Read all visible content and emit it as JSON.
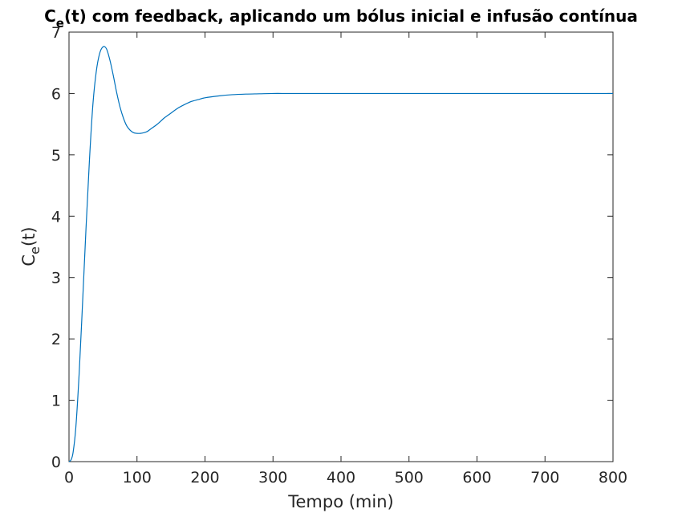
{
  "chart_data": {
    "type": "line",
    "title": {
      "main": "C",
      "sub": "e",
      "rest": "(t) com feedback, aplicando um bólus inicial e infusão contínua"
    },
    "xlabel": "Tempo (min)",
    "ylabel": {
      "main": "C",
      "sub": "e",
      "rest": "(t)"
    },
    "xlim": [
      0,
      800
    ],
    "ylim": [
      0,
      7
    ],
    "xticks": [
      "0",
      "100",
      "200",
      "300",
      "400",
      "500",
      "600",
      "700",
      "800"
    ],
    "yticks": [
      "0",
      "1",
      "2",
      "3",
      "4",
      "5",
      "6",
      "7"
    ],
    "grid": false,
    "series": [
      {
        "color": "#0072bd",
        "x": [
          0,
          3,
          6,
          10,
          15,
          20,
          25,
          30,
          35,
          40,
          45,
          50,
          55,
          60,
          65,
          70,
          75,
          80,
          85,
          90,
          95,
          100,
          105,
          110,
          115,
          120,
          130,
          140,
          150,
          160,
          170,
          180,
          190,
          200,
          220,
          240,
          260,
          280,
          300,
          320,
          340,
          360,
          400,
          450,
          500,
          600,
          700,
          800
        ],
        "y": [
          0,
          0.03,
          0.15,
          0.55,
          1.45,
          2.6,
          3.8,
          4.9,
          5.8,
          6.35,
          6.65,
          6.76,
          6.73,
          6.55,
          6.3,
          6.02,
          5.78,
          5.6,
          5.47,
          5.4,
          5.36,
          5.35,
          5.35,
          5.36,
          5.38,
          5.42,
          5.5,
          5.6,
          5.68,
          5.76,
          5.82,
          5.87,
          5.9,
          5.93,
          5.96,
          5.98,
          5.99,
          5.995,
          6.0,
          6.0,
          6.0,
          6.0,
          6.0,
          6.0,
          6.0,
          6.0,
          6.0,
          6.0
        ]
      }
    ]
  }
}
